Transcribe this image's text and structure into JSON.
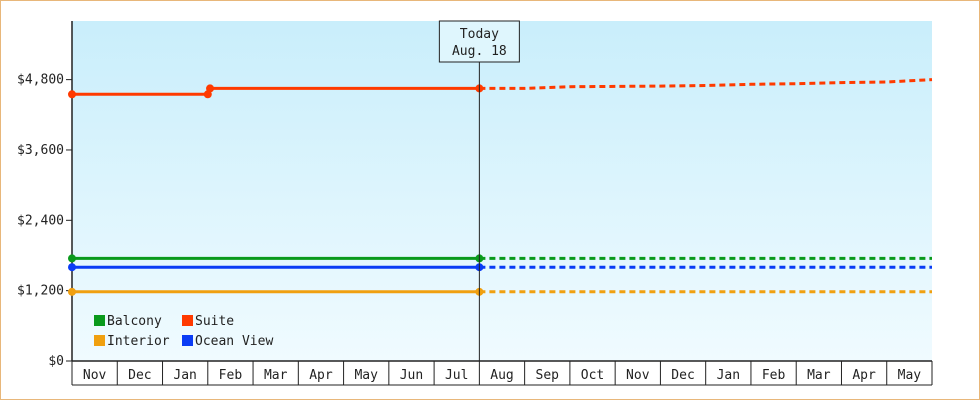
{
  "chart_data": {
    "type": "line",
    "title": "",
    "xlabel": "",
    "ylabel": "",
    "x_categories": [
      "Nov",
      "Dec",
      "Jan",
      "Feb",
      "Mar",
      "Apr",
      "May",
      "Jun",
      "Jul",
      "Aug",
      "Sep",
      "Oct",
      "Nov",
      "Dec",
      "Jan",
      "Feb",
      "Mar",
      "Apr",
      "May"
    ],
    "y_ticks": [
      "$0",
      "$1,200",
      "$2,400",
      "$3,600",
      "$4,800"
    ],
    "ylim": [
      0,
      5800
    ],
    "grid": false,
    "legend_position": "bottom-left",
    "today_marker": {
      "line1": "Today",
      "line2": "Aug. 18",
      "x": 9.0
    },
    "series": [
      {
        "name": "Balcony",
        "color": "#0a9a1c",
        "actual": [
          [
            0,
            1750
          ],
          [
            9,
            1750
          ]
        ],
        "points": [
          [
            0,
            1750
          ],
          [
            9,
            1750
          ]
        ],
        "forecast": [
          [
            9,
            1750
          ],
          [
            19,
            1750
          ]
        ]
      },
      {
        "name": "Suite",
        "color": "#ff3a00",
        "actual": [
          [
            0,
            4550
          ],
          [
            3,
            4550
          ],
          [
            3.05,
            4650
          ],
          [
            9,
            4650
          ]
        ],
        "points": [
          [
            0,
            4550
          ],
          [
            3,
            4550
          ],
          [
            3.05,
            4650
          ],
          [
            9,
            4650
          ]
        ],
        "forecast": [
          [
            9,
            4650
          ],
          [
            10,
            4650
          ],
          [
            11,
            4680
          ],
          [
            13,
            4690
          ],
          [
            14,
            4700
          ],
          [
            15,
            4720
          ],
          [
            16,
            4730
          ],
          [
            17,
            4750
          ],
          [
            18,
            4760
          ],
          [
            19,
            4800
          ]
        ]
      },
      {
        "name": "Interior",
        "color": "#f0a010",
        "actual": [
          [
            0,
            1180
          ],
          [
            9,
            1180
          ]
        ],
        "points": [
          [
            0,
            1180
          ],
          [
            9,
            1180
          ]
        ],
        "forecast": [
          [
            9,
            1180
          ],
          [
            19,
            1180
          ]
        ]
      },
      {
        "name": "Ocean View",
        "color": "#0a3cf5",
        "actual": [
          [
            0,
            1600
          ],
          [
            9,
            1600
          ]
        ],
        "points": [
          [
            0,
            1600
          ],
          [
            9,
            1600
          ]
        ],
        "forecast": [
          [
            9,
            1600
          ],
          [
            19,
            1600
          ]
        ]
      }
    ]
  }
}
